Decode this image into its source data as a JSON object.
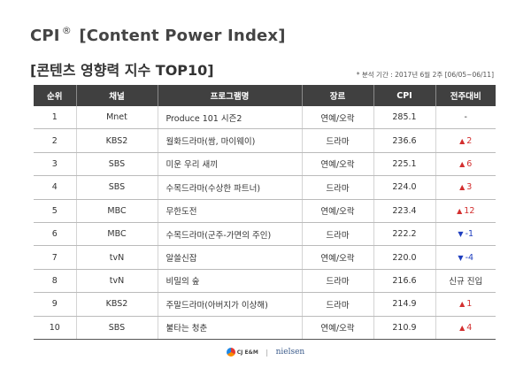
{
  "header": {
    "title_prefix": "CPI",
    "title_mark": "®",
    "title_suffix": "[Content Power Index]",
    "subtitle": "[콘텐츠 영향력 지수 TOP10]",
    "period": "* 분석 기간 : 2017년 6월 2주 [06/05~06/11]"
  },
  "table": {
    "columns": [
      "순위",
      "채널",
      "프로그램명",
      "장르",
      "CPI",
      "전주대비"
    ],
    "rows": [
      {
        "rank": "1",
        "channel": "Mnet",
        "program": "Produce 101 시즌2",
        "genre": "연예/오락",
        "cpi": "285.1",
        "change": "-",
        "dir": "none"
      },
      {
        "rank": "2",
        "channel": "KBS2",
        "program": "월화드라마(쌈, 마이웨이)",
        "genre": "드라마",
        "cpi": "236.6",
        "change": "2",
        "dir": "up"
      },
      {
        "rank": "3",
        "channel": "SBS",
        "program": "미운 우리 새끼",
        "genre": "연예/오락",
        "cpi": "225.1",
        "change": "6",
        "dir": "up"
      },
      {
        "rank": "4",
        "channel": "SBS",
        "program": "수목드라마(수상한 파트너)",
        "genre": "드라마",
        "cpi": "224.0",
        "change": "3",
        "dir": "up"
      },
      {
        "rank": "5",
        "channel": "MBC",
        "program": "무한도전",
        "genre": "연예/오락",
        "cpi": "223.4",
        "change": "12",
        "dir": "up"
      },
      {
        "rank": "6",
        "channel": "MBC",
        "program": "수목드라마(군주-가면의 주인)",
        "genre": "드라마",
        "cpi": "222.2",
        "change": "-1",
        "dir": "down"
      },
      {
        "rank": "7",
        "channel": "tvN",
        "program": "알쓸신잡",
        "genre": "연예/오락",
        "cpi": "220.0",
        "change": "-4",
        "dir": "down"
      },
      {
        "rank": "8",
        "channel": "tvN",
        "program": "비밀의 숲",
        "genre": "드라마",
        "cpi": "216.6",
        "change": "신규 진입",
        "dir": "none"
      },
      {
        "rank": "9",
        "channel": "KBS2",
        "program": "주말드라마(아버지가 이상해)",
        "genre": "드라마",
        "cpi": "214.9",
        "change": "1",
        "dir": "up"
      },
      {
        "rank": "10",
        "channel": "SBS",
        "program": "불타는 청춘",
        "genre": "연예/오락",
        "cpi": "210.9",
        "change": "4",
        "dir": "up"
      }
    ]
  },
  "footer": {
    "logo_cj": "CJ E&M",
    "logo_sep": "|",
    "logo_nielsen": "nielsen"
  },
  "colors": {
    "header_bg": "#404040",
    "up": "#d32f2f",
    "down": "#1f3fbf"
  },
  "icons": {
    "up": "triangle-up-icon",
    "down": "triangle-down-icon"
  }
}
